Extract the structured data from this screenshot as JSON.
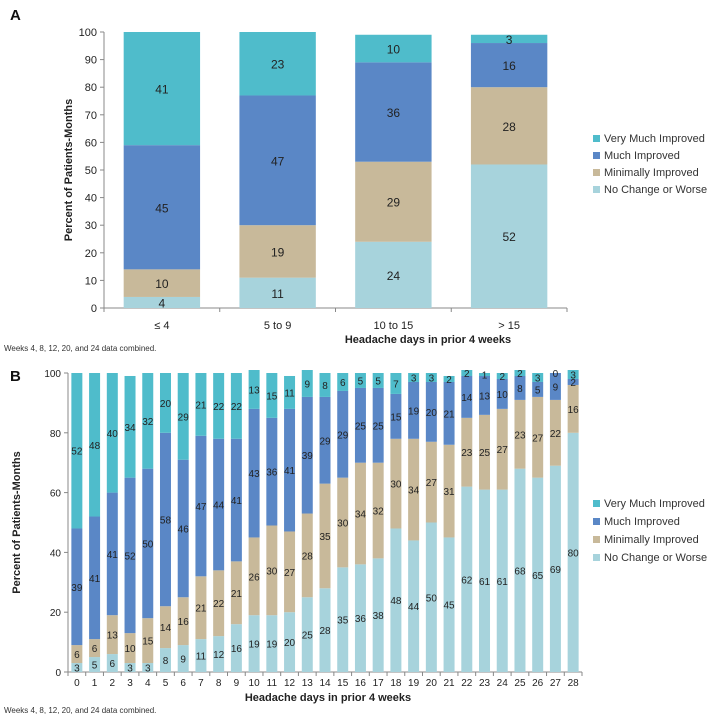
{
  "chart_data": [
    {
      "panel": "A",
      "type": "bar",
      "stacked": true,
      "title": "",
      "xlabel": "Headache days in prior 4 weeks",
      "ylabel": "Percent of Patients-Months",
      "ylim": [
        0,
        100
      ],
      "yticks": [
        "0",
        "10",
        "20",
        "30",
        "40",
        "50",
        "60",
        "70",
        "80",
        "90",
        "100"
      ],
      "categories": [
        "≤ 4",
        "5 to 9",
        "10 to 15",
        "> 15"
      ],
      "legend_position": "right",
      "series": [
        {
          "name": "No Change or Worse",
          "color": "#a7d3dc",
          "values": [
            4,
            11,
            24,
            52
          ]
        },
        {
          "name": "Minimally Improved",
          "color": "#c8b99a",
          "values": [
            10,
            19,
            29,
            28
          ]
        },
        {
          "name": "Much Improved",
          "color": "#5a87c6",
          "values": [
            45,
            47,
            36,
            16
          ]
        },
        {
          "name": "Very Much Improved",
          "color": "#4fbccb",
          "values": [
            41,
            23,
            10,
            3
          ]
        }
      ],
      "legend_order": [
        "Very Much Improved",
        "Much Improved",
        "Minimally Improved",
        "No Change or Worse"
      ],
      "footnote": "Weeks 4, 8, 12, 20, and 24 data combined."
    },
    {
      "panel": "B",
      "type": "bar",
      "stacked": true,
      "title": "",
      "xlabel": "Headache days in prior 4 weeks",
      "ylabel": "Percent of Patients-Months",
      "ylim": [
        0,
        100
      ],
      "yticks": [
        "0",
        "20",
        "40",
        "60",
        "80",
        "100"
      ],
      "categories": [
        "0",
        "1",
        "2",
        "3",
        "4",
        "5",
        "6",
        "7",
        "8",
        "9",
        "10",
        "11",
        "12",
        "13",
        "14",
        "15",
        "16",
        "17",
        "18",
        "19",
        "20",
        "21",
        "22",
        "23",
        "24",
        "25",
        "26",
        "27",
        "28"
      ],
      "legend_position": "right",
      "series": [
        {
          "name": "No Change or Worse",
          "color": "#a7d3dc",
          "values": [
            3,
            5,
            6,
            3,
            3,
            8,
            9,
            11,
            12,
            16,
            19,
            19,
            20,
            25,
            28,
            35,
            36,
            38,
            48,
            44,
            50,
            45,
            62,
            61,
            61,
            68,
            65,
            69,
            80
          ]
        },
        {
          "name": "Minimally Improved",
          "color": "#c8b99a",
          "values": [
            6,
            6,
            13,
            10,
            15,
            14,
            16,
            21,
            22,
            21,
            26,
            30,
            27,
            28,
            35,
            30,
            34,
            32,
            30,
            34,
            27,
            31,
            23,
            25,
            27,
            23,
            27,
            22,
            16
          ]
        },
        {
          "name": "Much Improved",
          "color": "#5a87c6",
          "values": [
            39,
            41,
            41,
            52,
            50,
            58,
            46,
            47,
            44,
            41,
            43,
            36,
            41,
            39,
            29,
            29,
            25,
            25,
            15,
            19,
            20,
            21,
            14,
            13,
            10,
            8,
            5,
            9,
            2
          ]
        },
        {
          "name": "Very Much Improved",
          "color": "#4fbccb",
          "values": [
            52,
            48,
            40,
            34,
            32,
            20,
            29,
            21,
            22,
            22,
            13,
            15,
            11,
            9,
            8,
            6,
            5,
            5,
            7,
            3,
            3,
            2,
            2,
            1,
            2,
            2,
            3,
            0,
            3
          ]
        }
      ],
      "legend_order": [
        "Very Much Improved",
        "Much Improved",
        "Minimally Improved",
        "No Change or Worse"
      ],
      "footnote": "Weeks 4, 8, 12, 20, and 24 data combined."
    }
  ]
}
